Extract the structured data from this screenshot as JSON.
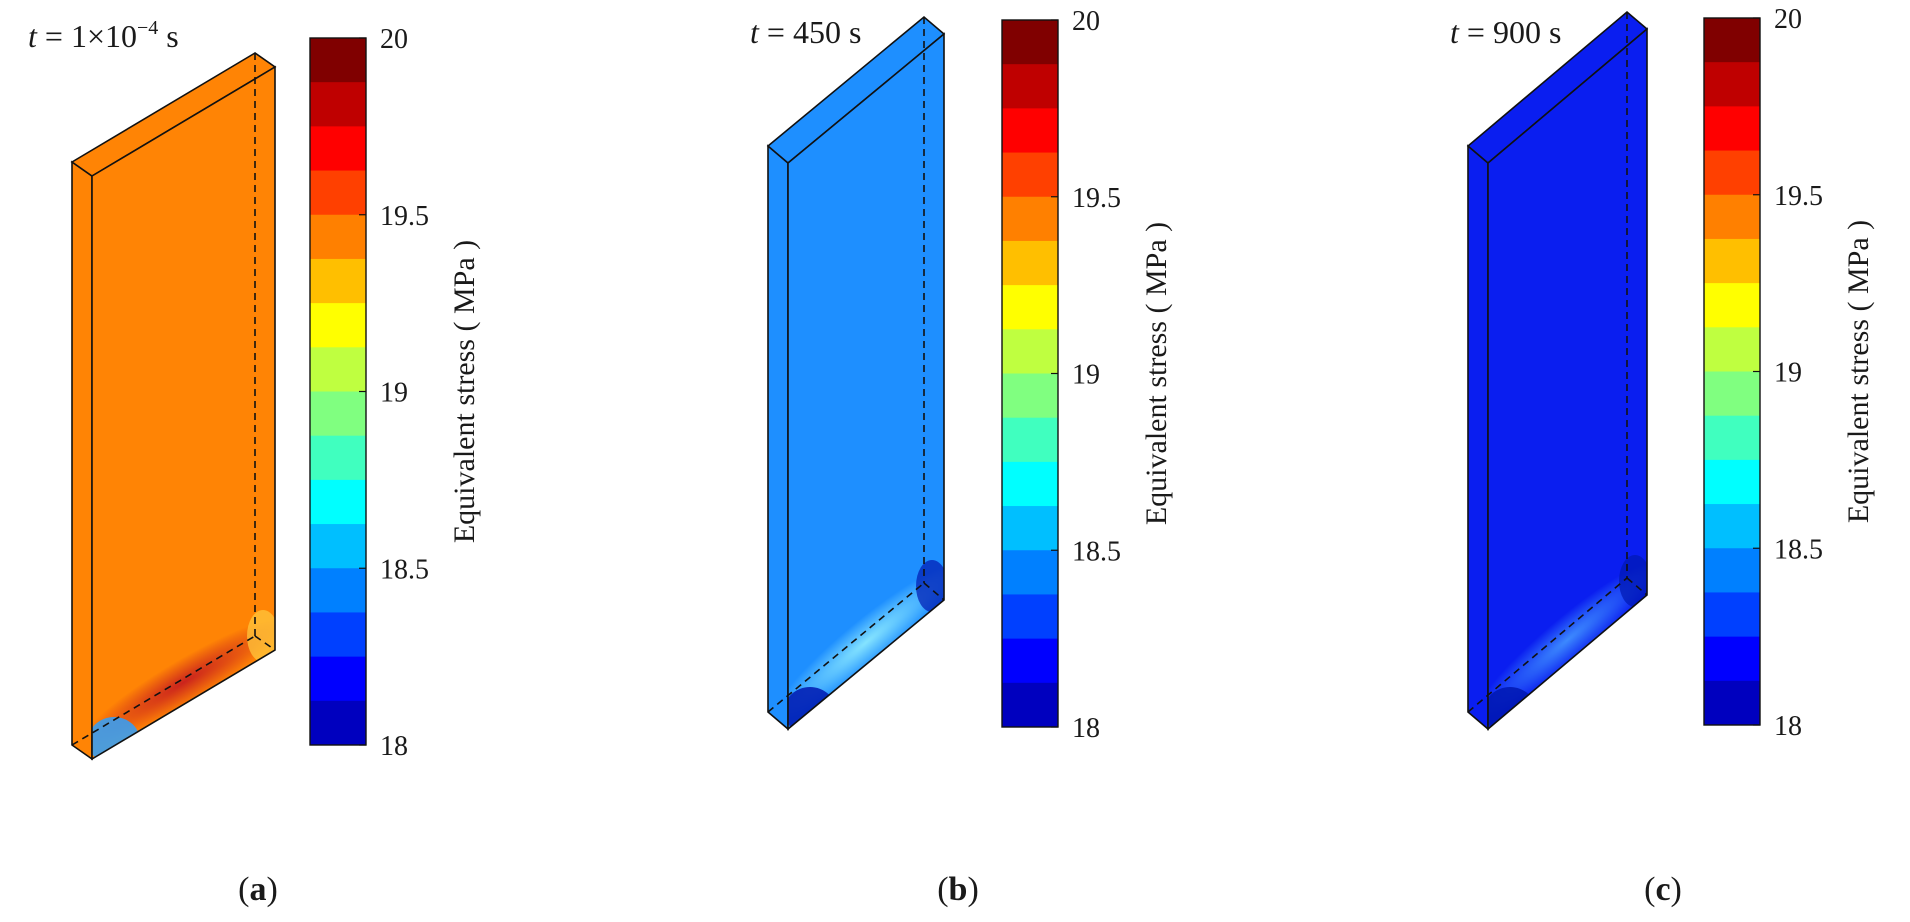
{
  "figure": {
    "panels": [
      {
        "id": "a",
        "time_label": {
          "variable": "t",
          "rest": " = 1×10",
          "exponent": "−4",
          "unit": " s"
        },
        "caption": "a",
        "plate_color": "#ff8405",
        "hotspot_color": "#c81e1e"
      },
      {
        "id": "b",
        "time_label": {
          "variable": "t",
          "rest": " = 450 s",
          "exponent": "",
          "unit": ""
        },
        "caption": "b",
        "plate_color": "#1e8fff",
        "hotspot_color": "#8ae8ff"
      },
      {
        "id": "c",
        "time_label": {
          "variable": "t",
          "rest": " = 900 s",
          "exponent": "",
          "unit": ""
        },
        "caption": "c",
        "plate_color": "#0a1ef0",
        "hotspot_color": "#3f8fff"
      }
    ],
    "colorbar": {
      "title": "Equivalent stress ( MPa )",
      "min": 18,
      "max": 20,
      "ticks": [
        {
          "value": 20,
          "label": "20"
        },
        {
          "value": 19.5,
          "label": "19.5"
        },
        {
          "value": 19,
          "label": "19"
        },
        {
          "value": 18.5,
          "label": "18.5"
        },
        {
          "value": 18,
          "label": "18"
        }
      ],
      "colors_top_to_bottom": [
        "#800000",
        "#bf0000",
        "#ff0000",
        "#ff4000",
        "#ff8000",
        "#ffbf00",
        "#ffff00",
        "#bfff40",
        "#80ff80",
        "#40ffbf",
        "#00ffff",
        "#00bfff",
        "#0080ff",
        "#0040ff",
        "#0000ff",
        "#0000bf"
      ]
    }
  }
}
